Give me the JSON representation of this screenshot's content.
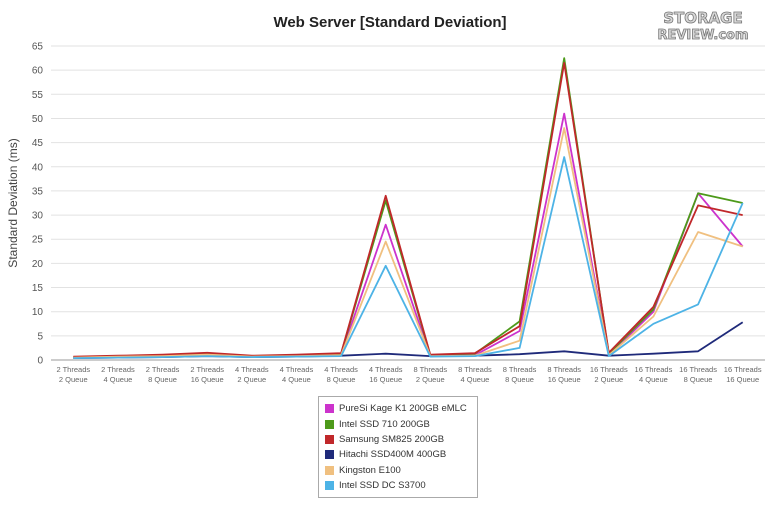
{
  "logo": {
    "line1": "STORAGE",
    "line2": "REVIEW.com"
  },
  "chart_data": {
    "type": "line",
    "title": "Web Server [Standard Deviation]",
    "xlabel": "",
    "ylabel": "Standard Deviation (ms)",
    "ylim": [
      0,
      65
    ],
    "yticks": [
      0,
      5,
      10,
      15,
      20,
      25,
      30,
      35,
      40,
      45,
      50,
      55,
      60,
      65
    ],
    "grid": true,
    "legend_position": "bottom",
    "categories": [
      [
        "2 Threads",
        "2 Queue"
      ],
      [
        "2 Threads",
        "4 Queue"
      ],
      [
        "2 Threads",
        "8 Queue"
      ],
      [
        "2 Threads",
        "16 Queue"
      ],
      [
        "4 Threads",
        "2 Queue"
      ],
      [
        "4 Threads",
        "4 Queue"
      ],
      [
        "4 Threads",
        "8 Queue"
      ],
      [
        "4 Threads",
        "16 Queue"
      ],
      [
        "8 Threads",
        "2 Queue"
      ],
      [
        "8 Threads",
        "4 Queue"
      ],
      [
        "8 Threads",
        "8 Queue"
      ],
      [
        "8 Threads",
        "16 Queue"
      ],
      [
        "16 Threads",
        "2 Queue"
      ],
      [
        "16 Threads",
        "4 Queue"
      ],
      [
        "16 Threads",
        "8 Queue"
      ],
      [
        "16 Threads",
        "16 Queue"
      ]
    ],
    "series": [
      {
        "name": "PureSi Kage K1 200GB eMLC",
        "color": "#cc33cc",
        "values": [
          0.5,
          0.7,
          0.9,
          1.2,
          0.7,
          0.9,
          1.1,
          28.0,
          0.8,
          1.0,
          6.0,
          51.0,
          1.0,
          10.0,
          34.5,
          23.5
        ]
      },
      {
        "name": "Intel SSD 710 200GB",
        "color": "#4d9a1a",
        "values": [
          0.6,
          0.8,
          1.0,
          1.4,
          0.8,
          1.0,
          1.3,
          33.0,
          1.0,
          1.3,
          8.0,
          62.5,
          1.3,
          10.5,
          34.5,
          32.5
        ]
      },
      {
        "name": "Samsung SM825 200GB",
        "color": "#c0282a",
        "values": [
          0.7,
          0.9,
          1.1,
          1.5,
          0.9,
          1.1,
          1.4,
          34.0,
          1.1,
          1.4,
          7.0,
          61.5,
          1.5,
          11.0,
          32.0,
          30.0
        ]
      },
      {
        "name": "Hitachi SSD400M 400GB",
        "color": "#1f2a7a",
        "values": [
          0.4,
          0.5,
          0.6,
          0.8,
          0.6,
          0.7,
          0.9,
          1.3,
          0.8,
          0.9,
          1.2,
          1.8,
          0.9,
          1.3,
          1.8,
          7.8
        ]
      },
      {
        "name": "Kingston E100",
        "color": "#f0c080",
        "values": [
          0.5,
          0.7,
          0.8,
          1.1,
          0.7,
          0.8,
          1.0,
          24.5,
          0.8,
          0.9,
          4.0,
          48.0,
          1.0,
          9.0,
          26.5,
          23.5
        ]
      },
      {
        "name": "Intel SSD DC S3700",
        "color": "#4db3e6",
        "values": [
          0.4,
          0.5,
          0.6,
          0.8,
          0.6,
          0.7,
          0.8,
          19.5,
          0.7,
          0.8,
          2.5,
          42.0,
          0.8,
          7.5,
          11.5,
          32.5
        ]
      }
    ]
  }
}
